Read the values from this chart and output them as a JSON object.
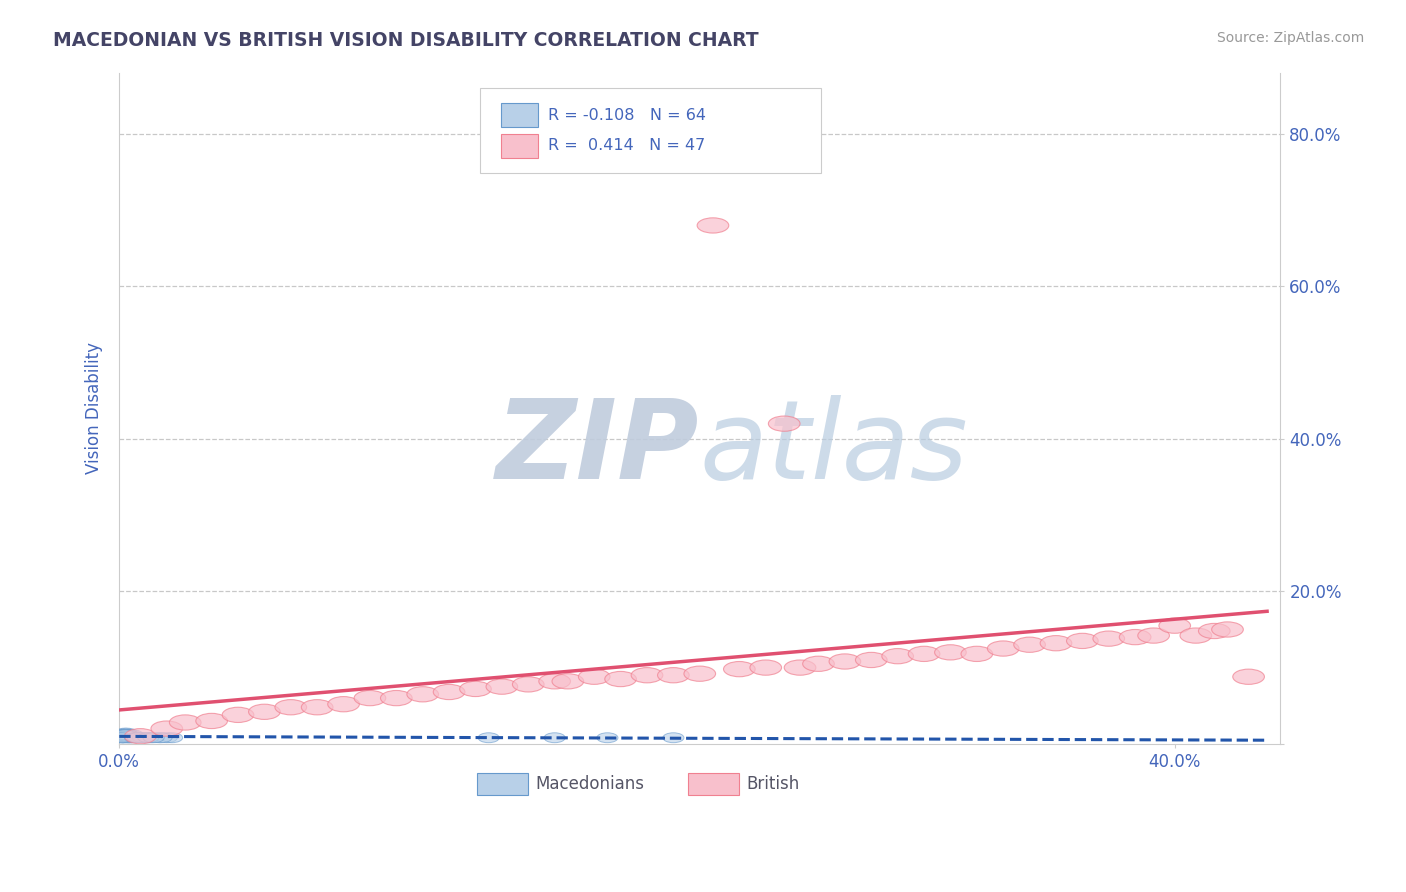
{
  "title": "MACEDONIAN VS BRITISH VISION DISABILITY CORRELATION CHART",
  "source": "Source: ZipAtlas.com",
  "ylabel": "Vision Disability",
  "xlim": [
    0.0,
    0.44
  ],
  "ylim": [
    0.0,
    0.88
  ],
  "background_color": "#ffffff",
  "grid_color": "#c8c8c8",
  "blue_marker_color": "#6699cc",
  "pink_marker_color": "#f08090",
  "blue_fill": "#b8d0e8",
  "pink_fill": "#f8c0cc",
  "trend_blue_color": "#2255aa",
  "trend_pink_color": "#e05070",
  "title_color": "#444466",
  "axis_label_color": "#4466bb",
  "watermark_zip_color": "#c0ccdd",
  "watermark_atlas_color": "#b8cce0",
  "macedonian_pts": [
    [
      0.001,
      0.01
    ],
    [
      0.001,
      0.012
    ],
    [
      0.001,
      0.008
    ],
    [
      0.002,
      0.01
    ],
    [
      0.002,
      0.012
    ],
    [
      0.002,
      0.008
    ],
    [
      0.002,
      0.014
    ],
    [
      0.002,
      0.01
    ],
    [
      0.003,
      0.01
    ],
    [
      0.003,
      0.012
    ],
    [
      0.003,
      0.008
    ],
    [
      0.003,
      0.01
    ],
    [
      0.003,
      0.014
    ],
    [
      0.004,
      0.01
    ],
    [
      0.004,
      0.012
    ],
    [
      0.004,
      0.008
    ],
    [
      0.004,
      0.01
    ],
    [
      0.005,
      0.01
    ],
    [
      0.005,
      0.012
    ],
    [
      0.005,
      0.008
    ],
    [
      0.001,
      0.01
    ],
    [
      0.002,
      0.01
    ],
    [
      0.001,
      0.012
    ],
    [
      0.002,
      0.008
    ],
    [
      0.003,
      0.01
    ],
    [
      0.001,
      0.008
    ],
    [
      0.002,
      0.01
    ],
    [
      0.003,
      0.012
    ],
    [
      0.001,
      0.01
    ],
    [
      0.002,
      0.012
    ],
    [
      0.003,
      0.01
    ],
    [
      0.001,
      0.008
    ],
    [
      0.002,
      0.01
    ],
    [
      0.003,
      0.012
    ],
    [
      0.004,
      0.008
    ],
    [
      0.001,
      0.01
    ],
    [
      0.002,
      0.01
    ],
    [
      0.002,
      0.012
    ],
    [
      0.003,
      0.008
    ],
    [
      0.001,
      0.01
    ],
    [
      0.002,
      0.01
    ],
    [
      0.003,
      0.012
    ],
    [
      0.004,
      0.008
    ],
    [
      0.002,
      0.01
    ],
    [
      0.001,
      0.01
    ],
    [
      0.003,
      0.01
    ],
    [
      0.002,
      0.012
    ],
    [
      0.001,
      0.008
    ],
    [
      0.14,
      0.008
    ],
    [
      0.165,
      0.008
    ],
    [
      0.185,
      0.008
    ],
    [
      0.21,
      0.008
    ],
    [
      0.008,
      0.008
    ],
    [
      0.012,
      0.008
    ],
    [
      0.015,
      0.008
    ],
    [
      0.018,
      0.008
    ],
    [
      0.01,
      0.008
    ],
    [
      0.006,
      0.008
    ],
    [
      0.02,
      0.008
    ],
    [
      0.016,
      0.008
    ],
    [
      0.009,
      0.008
    ],
    [
      0.007,
      0.008
    ],
    [
      0.011,
      0.008
    ],
    [
      0.013,
      0.008
    ]
  ],
  "british_pts": [
    [
      0.008,
      0.01
    ],
    [
      0.018,
      0.02
    ],
    [
      0.025,
      0.028
    ],
    [
      0.035,
      0.03
    ],
    [
      0.045,
      0.038
    ],
    [
      0.055,
      0.042
    ],
    [
      0.065,
      0.048
    ],
    [
      0.075,
      0.048
    ],
    [
      0.085,
      0.052
    ],
    [
      0.095,
      0.06
    ],
    [
      0.105,
      0.06
    ],
    [
      0.115,
      0.065
    ],
    [
      0.125,
      0.068
    ],
    [
      0.135,
      0.072
    ],
    [
      0.145,
      0.075
    ],
    [
      0.155,
      0.078
    ],
    [
      0.165,
      0.082
    ],
    [
      0.17,
      0.082
    ],
    [
      0.18,
      0.088
    ],
    [
      0.19,
      0.085
    ],
    [
      0.2,
      0.09
    ],
    [
      0.21,
      0.09
    ],
    [
      0.22,
      0.092
    ],
    [
      0.225,
      0.68
    ],
    [
      0.235,
      0.098
    ],
    [
      0.245,
      0.1
    ],
    [
      0.252,
      0.42
    ],
    [
      0.258,
      0.1
    ],
    [
      0.265,
      0.105
    ],
    [
      0.275,
      0.108
    ],
    [
      0.285,
      0.11
    ],
    [
      0.295,
      0.115
    ],
    [
      0.305,
      0.118
    ],
    [
      0.315,
      0.12
    ],
    [
      0.325,
      0.118
    ],
    [
      0.335,
      0.125
    ],
    [
      0.345,
      0.13
    ],
    [
      0.355,
      0.132
    ],
    [
      0.365,
      0.135
    ],
    [
      0.375,
      0.138
    ],
    [
      0.385,
      0.14
    ],
    [
      0.392,
      0.142
    ],
    [
      0.4,
      0.155
    ],
    [
      0.408,
      0.142
    ],
    [
      0.415,
      0.148
    ],
    [
      0.42,
      0.15
    ],
    [
      0.428,
      0.088
    ]
  ],
  "y_ticks": [
    0.0,
    0.2,
    0.4,
    0.6,
    0.8
  ],
  "y_tick_labels": [
    "",
    "20.0%",
    "40.0%",
    "60.0%",
    "80.0%"
  ],
  "x_ticks": [
    0.0,
    0.4
  ],
  "x_tick_labels": [
    "0.0%",
    "40.0%"
  ],
  "legend_R_mac": "R = -0.108",
  "legend_N_mac": "N = 64",
  "legend_R_brit": "R =  0.414",
  "legend_N_brit": "N = 47",
  "label_mac": "Macedonians",
  "label_brit": "British"
}
